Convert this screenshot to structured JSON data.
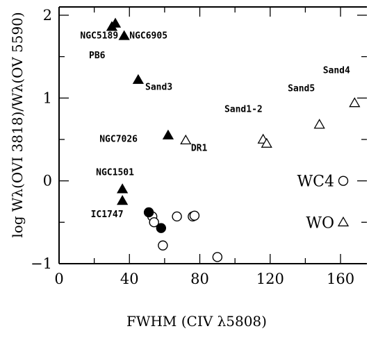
{
  "chart_data": {
    "type": "scatter",
    "xlabel": "FWHM (CIV λ5808)",
    "ylabel": "log Wλ(OVI 3818)/Wλ(OV 5590)",
    "xlim": [
      0,
      175
    ],
    "ylim": [
      -1,
      2.1
    ],
    "x_ticks": [
      "0",
      "40",
      "80",
      "120",
      "160"
    ],
    "y_ticks": [
      "−1",
      "0",
      "1",
      "2"
    ],
    "series": [
      {
        "name": "",
        "marker": "filled-triangle",
        "points": [
          {
            "x": 30,
            "y": 1.86
          },
          {
            "x": 32,
            "y": 1.9
          },
          {
            "x": 37,
            "y": 1.75
          },
          {
            "x": 45,
            "y": 1.22
          },
          {
            "x": 62,
            "y": 0.55
          },
          {
            "x": 36,
            "y": -0.1
          },
          {
            "x": 36,
            "y": -0.24
          }
        ]
      },
      {
        "name": "",
        "marker": "open-triangle",
        "points": [
          {
            "x": 72,
            "y": 0.49
          },
          {
            "x": 116,
            "y": 0.5
          },
          {
            "x": 118,
            "y": 0.45
          },
          {
            "x": 148,
            "y": 0.68
          },
          {
            "x": 168,
            "y": 0.94
          }
        ]
      },
      {
        "name": "",
        "marker": "filled-circle",
        "points": [
          {
            "x": 51,
            "y": -0.38
          },
          {
            "x": 58,
            "y": -0.57
          }
        ]
      },
      {
        "name": "",
        "marker": "open-circle",
        "points": [
          {
            "x": 53,
            "y": -0.43
          },
          {
            "x": 54,
            "y": -0.5
          },
          {
            "x": 59,
            "y": -0.78
          },
          {
            "x": 67,
            "y": -0.43
          },
          {
            "x": 76,
            "y": -0.43
          },
          {
            "x": 77,
            "y": -0.42
          },
          {
            "x": 90,
            "y": -0.92
          }
        ]
      }
    ],
    "annotations": [
      {
        "text": "NGC5189",
        "x": 12,
        "y": 1.72
      },
      {
        "text": "NGC6905",
        "x": 40,
        "y": 1.72
      },
      {
        "text": "PB6",
        "x": 17,
        "y": 1.48
      },
      {
        "text": "Sand3",
        "x": 49,
        "y": 1.1
      },
      {
        "text": "NGC7026",
        "x": 23,
        "y": 0.47
      },
      {
        "text": "DR1",
        "x": 75,
        "y": 0.36
      },
      {
        "text": "Sand1-2",
        "x": 94,
        "y": 0.83
      },
      {
        "text": "Sand5",
        "x": 130,
        "y": 1.08
      },
      {
        "text": "Sand4",
        "x": 150,
        "y": 1.3
      },
      {
        "text": "NGC1501",
        "x": 21,
        "y": 0.07
      },
      {
        "text": "IC1747",
        "x": 18,
        "y": -0.44
      }
    ],
    "legend": [
      {
        "text": "WC4",
        "marker": "open-circle"
      },
      {
        "text": "WO",
        "marker": "open-triangle"
      }
    ],
    "grid": false
  }
}
